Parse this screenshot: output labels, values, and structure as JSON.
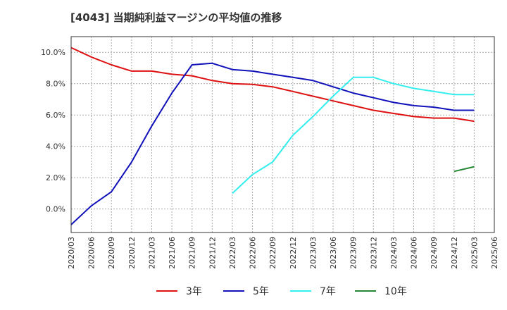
{
  "chart_data": {
    "type": "line",
    "title": "[4043]  当期純利益マージンの平均値の推移",
    "x": [
      "2020/03",
      "2020/06",
      "2020/09",
      "2020/12",
      "2021/03",
      "2021/06",
      "2021/09",
      "2021/12",
      "2022/03",
      "2022/06",
      "2022/09",
      "2022/12",
      "2023/03",
      "2023/06",
      "2023/09",
      "2023/12",
      "2024/03",
      "2024/06",
      "2024/09",
      "2024/12",
      "2025/03",
      "2025/06"
    ],
    "ylim": [
      -1.5,
      11.0
    ],
    "yticks": [
      0,
      2,
      4,
      6,
      8,
      10
    ],
    "ytick_labels": [
      "0.0%",
      "2.0%",
      "4.0%",
      "6.0%",
      "8.0%",
      "10.0%"
    ],
    "grid": true,
    "legend_position": "bottom",
    "series": [
      {
        "name": "3年",
        "color": "#dd1111",
        "values": [
          10.3,
          9.7,
          9.2,
          8.8,
          8.8,
          8.6,
          8.5,
          8.2,
          8.0,
          7.95,
          7.8,
          7.5,
          7.2,
          6.9,
          6.6,
          6.3,
          6.1,
          5.9,
          5.8,
          5.8,
          5.6,
          null
        ]
      },
      {
        "name": "5年",
        "color": "#1111bb",
        "values": [
          -1.0,
          0.2,
          1.1,
          3.0,
          5.3,
          7.4,
          9.2,
          9.3,
          8.9,
          8.8,
          8.6,
          8.4,
          8.2,
          7.8,
          7.4,
          7.1,
          6.8,
          6.6,
          6.5,
          6.3,
          6.3,
          null
        ]
      },
      {
        "name": "7年",
        "color": "#33eeee",
        "values": [
          null,
          null,
          null,
          null,
          null,
          null,
          null,
          null,
          1.0,
          2.2,
          3.0,
          4.7,
          5.9,
          7.2,
          8.4,
          8.4,
          8.0,
          7.7,
          7.5,
          7.3,
          7.3,
          null
        ]
      },
      {
        "name": "10年",
        "color": "#228833",
        "values": [
          null,
          null,
          null,
          null,
          null,
          null,
          null,
          null,
          null,
          null,
          null,
          null,
          null,
          null,
          null,
          null,
          null,
          null,
          null,
          2.4,
          2.7,
          null
        ]
      }
    ]
  }
}
